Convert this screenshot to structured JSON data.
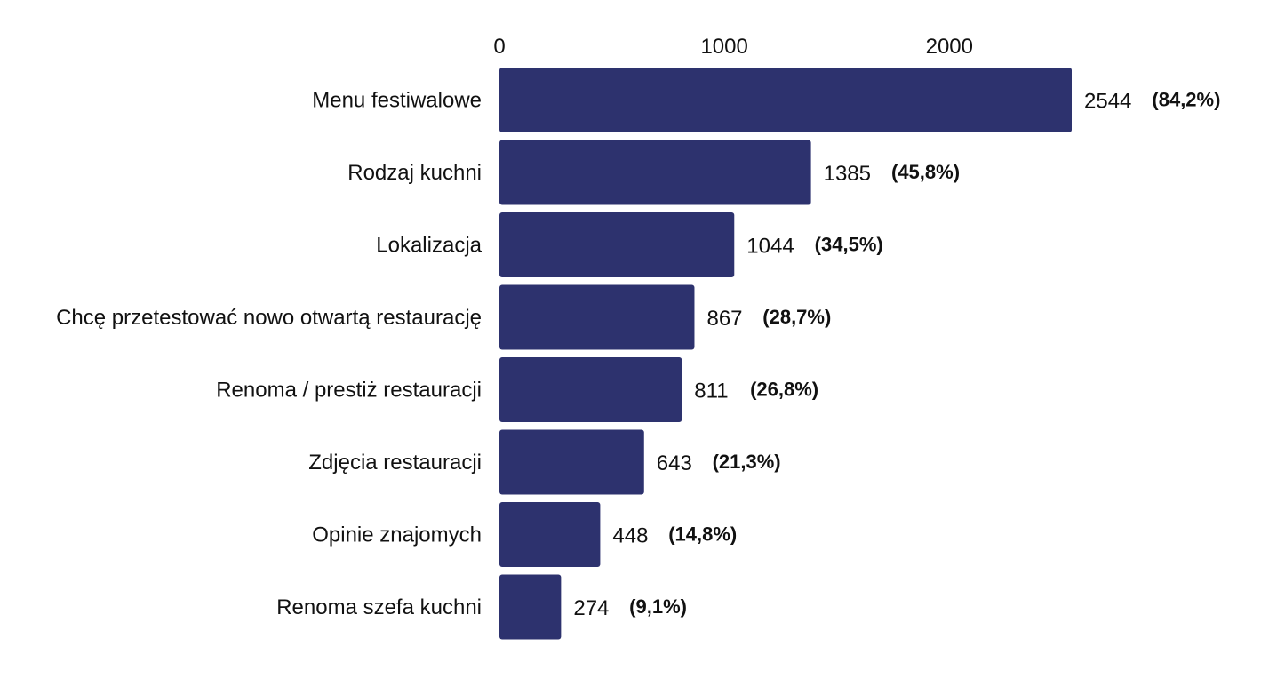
{
  "chart_data": {
    "type": "bar",
    "orientation": "horizontal",
    "categories": [
      "Menu festiwalowe",
      "Rodzaj kuchni",
      "Lokalizacja",
      "Chcę przetestować nowo otwartą restaurację",
      "Renoma / prestiż restauracji",
      "Zdjęcia restauracji",
      "Opinie znajomych",
      "Renoma szefa kuchni"
    ],
    "values": [
      2544,
      1385,
      1044,
      867,
      811,
      643,
      448,
      274
    ],
    "value_labels": [
      "2544",
      "1385",
      "1044",
      "867",
      "811",
      "643",
      "448",
      "274"
    ],
    "percent_labels": [
      "(84,2%)",
      "(45,8%)",
      "(34,5%)",
      "(28,7%)",
      "(26,8%)",
      "(21,3%)",
      "(14,8%)",
      "(9,1%)"
    ],
    "x_ticks": [
      0,
      1000,
      2000
    ],
    "x_tick_labels": [
      "0",
      "1000",
      "2000"
    ],
    "xlim": [
      0,
      2544
    ],
    "x_axis_position": "top",
    "grid": false,
    "legend": "none",
    "bar_color": "#2d326e"
  }
}
